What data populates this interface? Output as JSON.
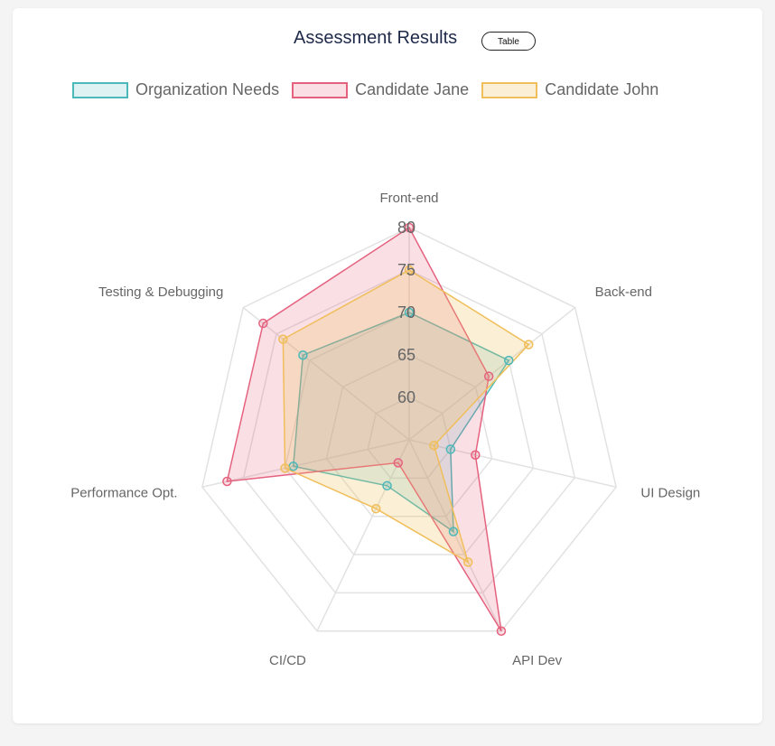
{
  "chart_data": {
    "type": "radar",
    "title": "Assessment Results",
    "categories": [
      "Front-end",
      "Back-end",
      "UI Design",
      "API Dev",
      "CI/CD",
      "Performance Opt.",
      "Testing & Debugging"
    ],
    "rlim": [
      55,
      80
    ],
    "ticks": [
      60,
      65,
      70,
      75,
      80
    ],
    "grid": true,
    "legend_position": "top",
    "series": [
      {
        "name": "Organization Needs",
        "values": [
          70,
          70,
          60,
          67,
          61,
          69,
          71
        ],
        "color": "#4bb8ba",
        "fill": "rgba(75,184,186,0.18)"
      },
      {
        "name": "Candidate Jane",
        "values": [
          80,
          67,
          63,
          80,
          58,
          77,
          77
        ],
        "color": "#e5627f",
        "fill": "rgba(229,98,127,0.20)"
      },
      {
        "name": "Candidate John",
        "values": [
          75,
          73,
          58,
          71,
          64,
          70,
          74
        ],
        "color": "#f0be5a",
        "fill": "rgba(240,190,90,0.25)"
      }
    ]
  },
  "header": {
    "table_button_label": "Table"
  }
}
